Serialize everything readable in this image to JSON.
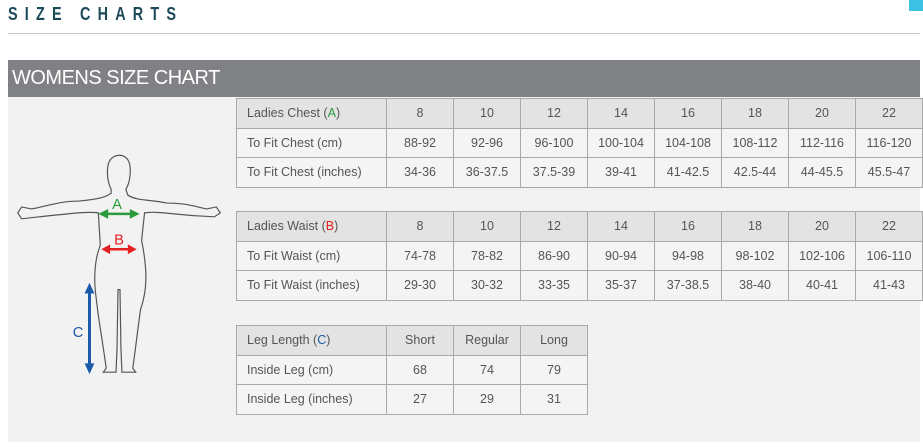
{
  "header": {
    "title": "SIZE CHARTS"
  },
  "banner": {
    "title": "WOMENS SIZE CHART"
  },
  "figure": {
    "labels": {
      "a": "A",
      "b": "B",
      "c": "C"
    }
  },
  "chest": {
    "label_pre": "Ladies Chest (",
    "label_key": "A",
    "label_post": ")",
    "sizes": [
      "8",
      "10",
      "12",
      "14",
      "16",
      "18",
      "20",
      "22"
    ],
    "rows": [
      {
        "label": "To Fit Chest (cm)",
        "values": [
          "88-92",
          "92-96",
          "96-100",
          "100-104",
          "104-108",
          "108-112",
          "112-116",
          "116-120"
        ]
      },
      {
        "label": "To Fit Chest (inches)",
        "values": [
          "34-36",
          "36-37.5",
          "37.5-39",
          "39-41",
          "41-42.5",
          "42.5-44",
          "44-45.5",
          "45.5-47"
        ]
      }
    ]
  },
  "waist": {
    "label_pre": "Ladies Waist (",
    "label_key": "B",
    "label_post": ")",
    "sizes": [
      "8",
      "10",
      "12",
      "14",
      "16",
      "18",
      "20",
      "22"
    ],
    "rows": [
      {
        "label": "To Fit Waist (cm)",
        "values": [
          "74-78",
          "78-82",
          "86-90",
          "90-94",
          "94-98",
          "98-102",
          "102-106",
          "106-110"
        ]
      },
      {
        "label": "To Fit Waist (inches)",
        "values": [
          "29-30",
          "30-32",
          "33-35",
          "35-37",
          "37-38.5",
          "38-40",
          "40-41",
          "41-43"
        ]
      }
    ]
  },
  "leg": {
    "label_pre": "Leg Length (",
    "label_key": "C",
    "label_post": ")",
    "sizes": [
      "Short",
      "Regular",
      "Long"
    ],
    "rows": [
      {
        "label": "Inside Leg (cm)",
        "values": [
          "68",
          "74",
          "79"
        ]
      },
      {
        "label": "Inside Leg (inches)",
        "values": [
          "27",
          "29",
          "31"
        ]
      }
    ]
  },
  "colors": {
    "a": "#2a9a3a",
    "b": "#e52020",
    "c": "#1a5aa8"
  }
}
